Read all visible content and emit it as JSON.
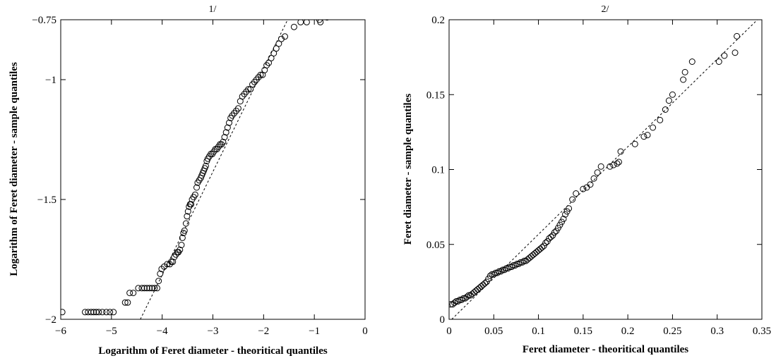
{
  "chart_data": [
    {
      "type": "scatter",
      "title": "1/",
      "xlabel": "Logarithm of Feret diameter - theoritical quantiles",
      "ylabel": "Logarithm of Feret diameter - sample quantiles",
      "xlim": [
        -6,
        0
      ],
      "ylim": [
        -2,
        -0.75
      ],
      "xticks": [
        -6,
        -5,
        -4,
        -3,
        -2,
        -1,
        0
      ],
      "xtick_labels": [
        "−6",
        "−5",
        "−4",
        "−3",
        "−2",
        "−1",
        "0"
      ],
      "yticks": [
        -2,
        -1.5,
        -1,
        -0.75
      ],
      "ytick_labels": [
        "−2",
        "−1.5",
        "−1",
        "−0.75"
      ],
      "grid": false,
      "marker": "open-circle",
      "reference_line": {
        "style": "dashed",
        "x": [
          -4.43,
          -1.48
        ],
        "y": [
          -2.0,
          -0.73
        ]
      },
      "points": [
        [
          -5.97,
          -1.97
        ],
        [
          -5.52,
          -1.97
        ],
        [
          -5.46,
          -1.97
        ],
        [
          -5.4,
          -1.97
        ],
        [
          -5.35,
          -1.97
        ],
        [
          -5.3,
          -1.97
        ],
        [
          -5.25,
          -1.97
        ],
        [
          -5.18,
          -1.97
        ],
        [
          -5.1,
          -1.97
        ],
        [
          -5.03,
          -1.97
        ],
        [
          -4.96,
          -1.97
        ],
        [
          -4.73,
          -1.93
        ],
        [
          -4.68,
          -1.93
        ],
        [
          -4.64,
          -1.89
        ],
        [
          -4.57,
          -1.89
        ],
        [
          -4.47,
          -1.87
        ],
        [
          -4.4,
          -1.87
        ],
        [
          -4.35,
          -1.87
        ],
        [
          -4.3,
          -1.87
        ],
        [
          -4.25,
          -1.87
        ],
        [
          -4.2,
          -1.87
        ],
        [
          -4.15,
          -1.87
        ],
        [
          -4.1,
          -1.87
        ],
        [
          -4.07,
          -1.84
        ],
        [
          -4.04,
          -1.81
        ],
        [
          -4.01,
          -1.79
        ],
        [
          -3.96,
          -1.78
        ],
        [
          -3.9,
          -1.77
        ],
        [
          -3.85,
          -1.77
        ],
        [
          -3.82,
          -1.76
        ],
        [
          -3.79,
          -1.76
        ],
        [
          -3.76,
          -1.74
        ],
        [
          -3.73,
          -1.73
        ],
        [
          -3.7,
          -1.72
        ],
        [
          -3.68,
          -1.72
        ],
        [
          -3.65,
          -1.71
        ],
        [
          -3.62,
          -1.69
        ],
        [
          -3.6,
          -1.66
        ],
        [
          -3.58,
          -1.64
        ],
        [
          -3.56,
          -1.63
        ],
        [
          -3.53,
          -1.6
        ],
        [
          -3.51,
          -1.57
        ],
        [
          -3.49,
          -1.55
        ],
        [
          -3.47,
          -1.53
        ],
        [
          -3.45,
          -1.52
        ],
        [
          -3.43,
          -1.52
        ],
        [
          -3.41,
          -1.5
        ],
        [
          -3.38,
          -1.49
        ],
        [
          -3.35,
          -1.48
        ],
        [
          -3.32,
          -1.45
        ],
        [
          -3.3,
          -1.43
        ],
        [
          -3.27,
          -1.42
        ],
        [
          -3.24,
          -1.41
        ],
        [
          -3.22,
          -1.4
        ],
        [
          -3.2,
          -1.39
        ],
        [
          -3.18,
          -1.38
        ],
        [
          -3.16,
          -1.37
        ],
        [
          -3.14,
          -1.36
        ],
        [
          -3.12,
          -1.34
        ],
        [
          -3.1,
          -1.33
        ],
        [
          -3.07,
          -1.32
        ],
        [
          -3.04,
          -1.31
        ],
        [
          -3.01,
          -1.31
        ],
        [
          -2.98,
          -1.3
        ],
        [
          -2.95,
          -1.29
        ],
        [
          -2.92,
          -1.29
        ],
        [
          -2.89,
          -1.28
        ],
        [
          -2.86,
          -1.27
        ],
        [
          -2.83,
          -1.27
        ],
        [
          -2.8,
          -1.26
        ],
        [
          -2.77,
          -1.24
        ],
        [
          -2.74,
          -1.22
        ],
        [
          -2.71,
          -1.2
        ],
        [
          -2.68,
          -1.18
        ],
        [
          -2.65,
          -1.16
        ],
        [
          -2.62,
          -1.15
        ],
        [
          -2.58,
          -1.14
        ],
        [
          -2.54,
          -1.13
        ],
        [
          -2.5,
          -1.12
        ],
        [
          -2.46,
          -1.09
        ],
        [
          -2.42,
          -1.07
        ],
        [
          -2.38,
          -1.06
        ],
        [
          -2.34,
          -1.05
        ],
        [
          -2.3,
          -1.04
        ],
        [
          -2.26,
          -1.04
        ],
        [
          -2.22,
          -1.02
        ],
        [
          -2.18,
          -1.01
        ],
        [
          -2.14,
          -1.0
        ],
        [
          -2.1,
          -0.99
        ],
        [
          -2.06,
          -0.98
        ],
        [
          -2.02,
          -0.98
        ],
        [
          -1.98,
          -0.96
        ],
        [
          -1.94,
          -0.94
        ],
        [
          -1.9,
          -0.93
        ],
        [
          -1.85,
          -0.91
        ],
        [
          -1.8,
          -0.89
        ],
        [
          -1.75,
          -0.87
        ],
        [
          -1.7,
          -0.85
        ],
        [
          -1.65,
          -0.83
        ],
        [
          -1.58,
          -0.82
        ],
        [
          -1.4,
          -0.78
        ],
        [
          -1.27,
          -0.76
        ],
        [
          -1.15,
          -0.76
        ],
        [
          -0.9,
          -0.75
        ],
        [
          -0.88,
          -0.76
        ],
        [
          -0.75,
          -0.74
        ]
      ]
    },
    {
      "type": "scatter",
      "title": "2/",
      "xlabel": "Feret diameter - theoritical quantiles",
      "ylabel": "Feret diameter - sample quantiles",
      "xlim": [
        0,
        0.35
      ],
      "ylim": [
        0,
        0.2
      ],
      "xticks": [
        0,
        0.05,
        0.1,
        0.15,
        0.2,
        0.25,
        0.3,
        0.35
      ],
      "xtick_labels": [
        "0",
        "0.05",
        "0.1",
        "0.15",
        "0.2",
        "0.25",
        "0.3",
        "0.35"
      ],
      "yticks": [
        0,
        0.05,
        0.1,
        0.15,
        0.2
      ],
      "ytick_labels": [
        "0",
        "0.05",
        "0.1",
        "0.15",
        "0.2"
      ],
      "grid": false,
      "marker": "open-circle",
      "reference_line": {
        "style": "dashed",
        "x": [
          0.003,
          0.345
        ],
        "y": [
          0.0,
          0.2
        ]
      },
      "points": [
        [
          0.002,
          0.01
        ],
        [
          0.004,
          0.01
        ],
        [
          0.006,
          0.011
        ],
        [
          0.008,
          0.012
        ],
        [
          0.01,
          0.012
        ],
        [
          0.012,
          0.013
        ],
        [
          0.014,
          0.013
        ],
        [
          0.016,
          0.014
        ],
        [
          0.018,
          0.014
        ],
        [
          0.02,
          0.015
        ],
        [
          0.022,
          0.016
        ],
        [
          0.024,
          0.016
        ],
        [
          0.026,
          0.017
        ],
        [
          0.028,
          0.018
        ],
        [
          0.03,
          0.019
        ],
        [
          0.032,
          0.02
        ],
        [
          0.034,
          0.021
        ],
        [
          0.036,
          0.022
        ],
        [
          0.038,
          0.023
        ],
        [
          0.04,
          0.024
        ],
        [
          0.042,
          0.025
        ],
        [
          0.044,
          0.027
        ],
        [
          0.046,
          0.029
        ],
        [
          0.048,
          0.03
        ],
        [
          0.05,
          0.03
        ],
        [
          0.052,
          0.031
        ],
        [
          0.054,
          0.031
        ],
        [
          0.056,
          0.032
        ],
        [
          0.058,
          0.032
        ],
        [
          0.06,
          0.033
        ],
        [
          0.062,
          0.033
        ],
        [
          0.064,
          0.034
        ],
        [
          0.066,
          0.034
        ],
        [
          0.068,
          0.035
        ],
        [
          0.07,
          0.035
        ],
        [
          0.072,
          0.036
        ],
        [
          0.074,
          0.036
        ],
        [
          0.076,
          0.037
        ],
        [
          0.078,
          0.037
        ],
        [
          0.08,
          0.038
        ],
        [
          0.082,
          0.038
        ],
        [
          0.084,
          0.039
        ],
        [
          0.086,
          0.039
        ],
        [
          0.088,
          0.04
        ],
        [
          0.09,
          0.041
        ],
        [
          0.092,
          0.042
        ],
        [
          0.094,
          0.043
        ],
        [
          0.096,
          0.044
        ],
        [
          0.098,
          0.045
        ],
        [
          0.1,
          0.046
        ],
        [
          0.102,
          0.047
        ],
        [
          0.104,
          0.048
        ],
        [
          0.106,
          0.049
        ],
        [
          0.108,
          0.051
        ],
        [
          0.11,
          0.052
        ],
        [
          0.112,
          0.054
        ],
        [
          0.114,
          0.055
        ],
        [
          0.116,
          0.056
        ],
        [
          0.118,
          0.058
        ],
        [
          0.12,
          0.059
        ],
        [
          0.122,
          0.061
        ],
        [
          0.124,
          0.063
        ],
        [
          0.126,
          0.065
        ],
        [
          0.128,
          0.067
        ],
        [
          0.13,
          0.07
        ],
        [
          0.132,
          0.072
        ],
        [
          0.134,
          0.074
        ],
        [
          0.138,
          0.08
        ],
        [
          0.142,
          0.084
        ],
        [
          0.15,
          0.087
        ],
        [
          0.154,
          0.088
        ],
        [
          0.158,
          0.09
        ],
        [
          0.162,
          0.094
        ],
        [
          0.166,
          0.098
        ],
        [
          0.17,
          0.102
        ],
        [
          0.18,
          0.102
        ],
        [
          0.184,
          0.103
        ],
        [
          0.188,
          0.104
        ],
        [
          0.19,
          0.105
        ],
        [
          0.192,
          0.112
        ],
        [
          0.208,
          0.117
        ],
        [
          0.218,
          0.122
        ],
        [
          0.222,
          0.123
        ],
        [
          0.228,
          0.128
        ],
        [
          0.236,
          0.133
        ],
        [
          0.242,
          0.14
        ],
        [
          0.246,
          0.146
        ],
        [
          0.25,
          0.15
        ],
        [
          0.262,
          0.16
        ],
        [
          0.264,
          0.165
        ],
        [
          0.272,
          0.172
        ],
        [
          0.302,
          0.172
        ],
        [
          0.308,
          0.176
        ],
        [
          0.32,
          0.178
        ],
        [
          0.322,
          0.189
        ]
      ]
    }
  ]
}
